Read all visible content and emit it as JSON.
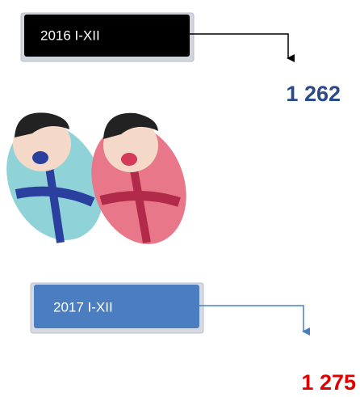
{
  "panels": [
    {
      "label": "2016 I-XII",
      "value": "1 262"
    },
    {
      "label": "2017 I-XII",
      "value": "1 275"
    }
  ]
}
